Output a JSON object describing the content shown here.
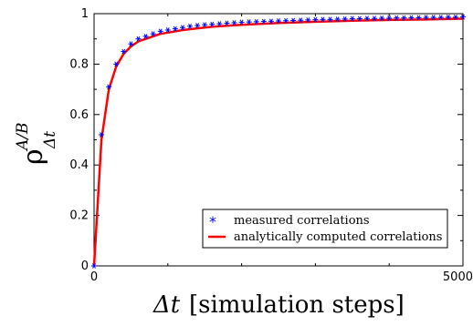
{
  "chart_data": {
    "type": "line",
    "title": "",
    "xlabel": {
      "symbol": "Δt",
      "text": "[simulation steps]"
    },
    "ylabel": {
      "base": "ρ",
      "superscript": "A/B",
      "subscript": "Δt"
    },
    "xlim": [
      0,
      5000
    ],
    "ylim": [
      0,
      1
    ],
    "x_ticks": [
      0,
      5000
    ],
    "x_minor_ticks": [
      1000,
      2000,
      3000,
      4000
    ],
    "y_ticks": [
      0,
      0.2,
      0.4,
      0.6,
      0.8,
      1
    ],
    "y_tick_labels": [
      "0",
      "0.2",
      "0.4",
      "0.6",
      "0.8",
      "1"
    ],
    "x_tick_labels": [
      "0",
      "5000"
    ],
    "grid": false,
    "legend_position": "bottom-right",
    "series": [
      {
        "name": "measured correlations",
        "style": "markers",
        "marker": "asterisk",
        "color": "#0000ff",
        "x": [
          0,
          100,
          200,
          300,
          400,
          500,
          600,
          700,
          800,
          900,
          1000,
          1100,
          1200,
          1300,
          1400,
          1500,
          1600,
          1700,
          1800,
          1900,
          2000,
          2100,
          2200,
          2300,
          2400,
          2500,
          2600,
          2700,
          2800,
          2900,
          3000,
          3100,
          3200,
          3300,
          3400,
          3500,
          3600,
          3700,
          3800,
          3900,
          4000,
          4100,
          4200,
          4300,
          4400,
          4500,
          4600,
          4700,
          4800,
          4900,
          5000
        ],
        "y": [
          0.0,
          0.52,
          0.71,
          0.8,
          0.85,
          0.88,
          0.9,
          0.91,
          0.92,
          0.93,
          0.935,
          0.94,
          0.945,
          0.95,
          0.953,
          0.956,
          0.958,
          0.96,
          0.962,
          0.964,
          0.966,
          0.967,
          0.968,
          0.969,
          0.97,
          0.971,
          0.972,
          0.973,
          0.974,
          0.975,
          0.976,
          0.977,
          0.977,
          0.978,
          0.979,
          0.98,
          0.98,
          0.981,
          0.981,
          0.982,
          0.982,
          0.983,
          0.983,
          0.984,
          0.984,
          0.985,
          0.985,
          0.985,
          0.986,
          0.986,
          0.987
        ]
      },
      {
        "name": "analytically computed correlations",
        "style": "line",
        "color": "#ff0000",
        "x": [
          0,
          100,
          200,
          300,
          400,
          500,
          600,
          700,
          800,
          900,
          1000,
          1200,
          1400,
          1600,
          1800,
          2000,
          2500,
          3000,
          3500,
          4000,
          4500,
          5000
        ],
        "y": [
          0.0,
          0.5,
          0.7,
          0.79,
          0.84,
          0.87,
          0.89,
          0.9,
          0.91,
          0.92,
          0.925,
          0.935,
          0.942,
          0.948,
          0.952,
          0.956,
          0.963,
          0.968,
          0.972,
          0.975,
          0.977,
          0.98
        ]
      }
    ]
  }
}
